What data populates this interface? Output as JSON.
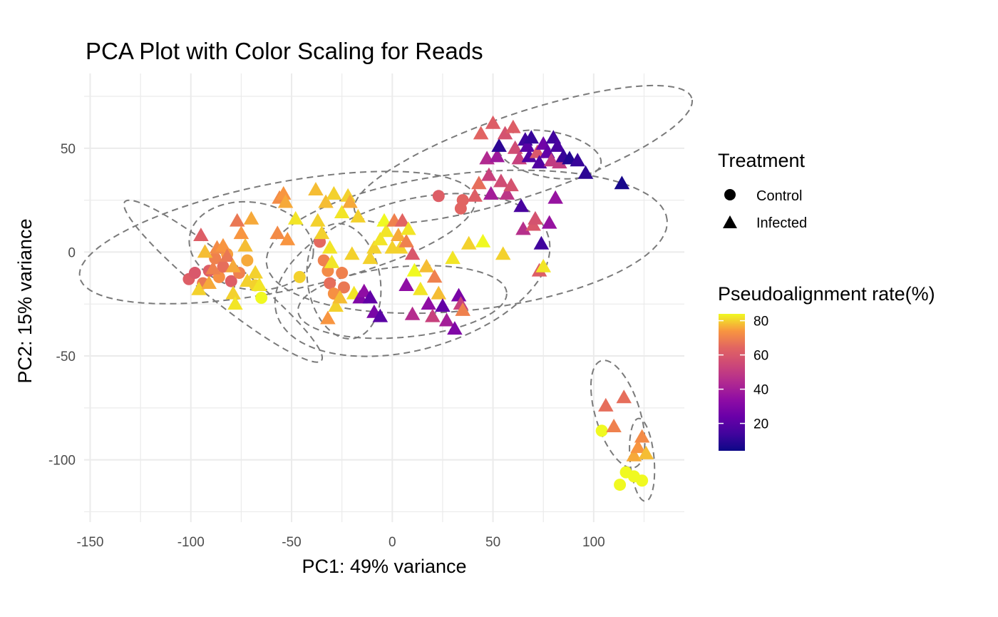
{
  "chart_data": {
    "type": "scatter",
    "title": "PCA Plot with Color Scaling for Reads",
    "xlabel": "PC1: 49% variance",
    "ylabel": "PC2: 15% variance",
    "xlim": [
      -153,
      145
    ],
    "ylim": [
      -130,
      86
    ],
    "x_ticks": [
      -150,
      -100,
      -50,
      0,
      50,
      100
    ],
    "y_ticks": [
      -100,
      -50,
      0,
      50
    ],
    "grid": true,
    "shape_legend": {
      "title": "Treatment",
      "items": [
        {
          "label": "Control",
          "shape": "circle"
        },
        {
          "label": "Infected",
          "shape": "triangle"
        }
      ]
    },
    "color_legend": {
      "title": "Pseudoalignment rate(%)",
      "range": [
        4,
        84
      ],
      "ticks": [
        20,
        40,
        60,
        80
      ],
      "palette": "plasma"
    },
    "points": [
      {
        "x": -101,
        "y": -13,
        "group": "Control",
        "rate": 62
      },
      {
        "x": -98,
        "y": -10,
        "group": "Control",
        "rate": 60
      },
      {
        "x": -94,
        "y": -15,
        "group": "Control",
        "rate": 68
      },
      {
        "x": -91,
        "y": -9,
        "group": "Control",
        "rate": 62
      },
      {
        "x": -88,
        "y": -3,
        "group": "Control",
        "rate": 70
      },
      {
        "x": -86,
        "y": -12,
        "group": "Control",
        "rate": 73
      },
      {
        "x": -84,
        "y": -7,
        "group": "Control",
        "rate": 66
      },
      {
        "x": -82,
        "y": -1,
        "group": "Control",
        "rate": 75
      },
      {
        "x": -80,
        "y": -14,
        "group": "Control",
        "rate": 62
      },
      {
        "x": -76,
        "y": -10,
        "group": "Control",
        "rate": 70
      },
      {
        "x": -72,
        "y": -4,
        "group": "Control",
        "rate": 76
      },
      {
        "x": -68,
        "y": -16,
        "group": "Control",
        "rate": 80
      },
      {
        "x": -65,
        "y": -22,
        "group": "Control",
        "rate": 84
      },
      {
        "x": -46,
        "y": -12,
        "group": "Control",
        "rate": 80
      },
      {
        "x": -36,
        "y": 5,
        "group": "Control",
        "rate": 65
      },
      {
        "x": -34,
        "y": -4,
        "group": "Control",
        "rate": 70
      },
      {
        "x": -32,
        "y": -9,
        "group": "Control",
        "rate": 72
      },
      {
        "x": -31,
        "y": -15,
        "group": "Control",
        "rate": 66
      },
      {
        "x": -29,
        "y": -20,
        "group": "Control",
        "rate": 73
      },
      {
        "x": -25,
        "y": -10,
        "group": "Control",
        "rate": 70
      },
      {
        "x": -24,
        "y": -17,
        "group": "Control",
        "rate": 68
      },
      {
        "x": 23,
        "y": 27,
        "group": "Control",
        "rate": 62
      },
      {
        "x": 35,
        "y": 25,
        "group": "Control",
        "rate": 64
      },
      {
        "x": 34,
        "y": 21,
        "group": "Control",
        "rate": 64
      },
      {
        "x": 104,
        "y": -86,
        "group": "Control",
        "rate": 84
      },
      {
        "x": 116,
        "y": -106,
        "group": "Control",
        "rate": 84
      },
      {
        "x": 113,
        "y": -112,
        "group": "Control",
        "rate": 84
      },
      {
        "x": 124,
        "y": -110,
        "group": "Control",
        "rate": 84
      },
      {
        "x": 120,
        "y": -108,
        "group": "Control",
        "rate": 84
      },
      {
        "x": -95,
        "y": 8,
        "group": "Infected",
        "rate": 62
      },
      {
        "x": -93,
        "y": 0,
        "group": "Infected",
        "rate": 78
      },
      {
        "x": -96,
        "y": -18,
        "group": "Infected",
        "rate": 80
      },
      {
        "x": -91,
        "y": -15,
        "group": "Infected",
        "rate": 76
      },
      {
        "x": -89,
        "y": -8,
        "group": "Infected",
        "rate": 70
      },
      {
        "x": -87,
        "y": 2,
        "group": "Infected",
        "rate": 72
      },
      {
        "x": -84,
        "y": 3,
        "group": "Infected",
        "rate": 74
      },
      {
        "x": -82,
        "y": -2,
        "group": "Infected",
        "rate": 68
      },
      {
        "x": -79,
        "y": -7,
        "group": "Infected",
        "rate": 76
      },
      {
        "x": -77,
        "y": 15,
        "group": "Infected",
        "rate": 68
      },
      {
        "x": -79,
        "y": -20,
        "group": "Infected",
        "rate": 80
      },
      {
        "x": -78,
        "y": -25,
        "group": "Infected",
        "rate": 82
      },
      {
        "x": -75,
        "y": 9,
        "group": "Infected",
        "rate": 74
      },
      {
        "x": -73,
        "y": 3,
        "group": "Infected",
        "rate": 78
      },
      {
        "x": -72,
        "y": -14,
        "group": "Infected",
        "rate": 80
      },
      {
        "x": -70,
        "y": 16,
        "group": "Infected",
        "rate": 76
      },
      {
        "x": -68,
        "y": -10,
        "group": "Infected",
        "rate": 80
      },
      {
        "x": -66,
        "y": -16,
        "group": "Infected",
        "rate": 82
      },
      {
        "x": -56,
        "y": 26,
        "group": "Infected",
        "rate": 72
      },
      {
        "x": -54,
        "y": 28,
        "group": "Infected",
        "rate": 74
      },
      {
        "x": -53,
        "y": 24,
        "group": "Infected",
        "rate": 76
      },
      {
        "x": -57,
        "y": 9,
        "group": "Infected",
        "rate": 72
      },
      {
        "x": -52,
        "y": 6,
        "group": "Infected",
        "rate": 74
      },
      {
        "x": -48,
        "y": 16,
        "group": "Infected",
        "rate": 82
      },
      {
        "x": -38,
        "y": 30,
        "group": "Infected",
        "rate": 78
      },
      {
        "x": -37,
        "y": 15,
        "group": "Infected",
        "rate": 80
      },
      {
        "x": -35,
        "y": 9,
        "group": "Infected",
        "rate": 80
      },
      {
        "x": -33,
        "y": 24,
        "group": "Infected",
        "rate": 78
      },
      {
        "x": -31,
        "y": 2,
        "group": "Infected",
        "rate": 82
      },
      {
        "x": -30,
        "y": -5,
        "group": "Infected",
        "rate": 82
      },
      {
        "x": -29,
        "y": 28,
        "group": "Infected",
        "rate": 80
      },
      {
        "x": -28,
        "y": -26,
        "group": "Infected",
        "rate": 80
      },
      {
        "x": -26,
        "y": -22,
        "group": "Infected",
        "rate": 78
      },
      {
        "x": -25,
        "y": 19,
        "group": "Infected",
        "rate": 82
      },
      {
        "x": -22,
        "y": 27,
        "group": "Infected",
        "rate": 80
      },
      {
        "x": -21,
        "y": 24,
        "group": "Infected",
        "rate": 76
      },
      {
        "x": -20,
        "y": -1,
        "group": "Infected",
        "rate": 80
      },
      {
        "x": -17,
        "y": 17,
        "group": "Infected",
        "rate": 80
      },
      {
        "x": -19,
        "y": -20,
        "group": "Infected",
        "rate": 82
      },
      {
        "x": -32,
        "y": -32,
        "group": "Infected",
        "rate": 74
      },
      {
        "x": -16,
        "y": -22,
        "group": "Infected",
        "rate": 30
      },
      {
        "x": -14,
        "y": -19,
        "group": "Infected",
        "rate": 34
      },
      {
        "x": -11,
        "y": -22,
        "group": "Infected",
        "rate": 22
      },
      {
        "x": -9,
        "y": -29,
        "group": "Infected",
        "rate": 28
      },
      {
        "x": -6,
        "y": -31,
        "group": "Infected",
        "rate": 20
      },
      {
        "x": -11,
        "y": -3,
        "group": "Infected",
        "rate": 80
      },
      {
        "x": -9,
        "y": 2,
        "group": "Infected",
        "rate": 80
      },
      {
        "x": -6,
        "y": 6,
        "group": "Infected",
        "rate": 82
      },
      {
        "x": -4,
        "y": 15,
        "group": "Infected",
        "rate": 84
      },
      {
        "x": -3,
        "y": 10,
        "group": "Infected",
        "rate": 82
      },
      {
        "x": 0,
        "y": 2,
        "group": "Infected",
        "rate": 80
      },
      {
        "x": 1,
        "y": 15,
        "group": "Infected",
        "rate": 70
      },
      {
        "x": 3,
        "y": 8,
        "group": "Infected",
        "rate": 76
      },
      {
        "x": 4,
        "y": 2,
        "group": "Infected",
        "rate": 80
      },
      {
        "x": 5,
        "y": 15,
        "group": "Infected",
        "rate": 64
      },
      {
        "x": 7,
        "y": 5,
        "group": "Infected",
        "rate": 70
      },
      {
        "x": 8,
        "y": 11,
        "group": "Infected",
        "rate": 82
      },
      {
        "x": 10,
        "y": -1,
        "group": "Infected",
        "rate": 60
      },
      {
        "x": 11,
        "y": -9,
        "group": "Infected",
        "rate": 84
      },
      {
        "x": 7,
        "y": -16,
        "group": "Infected",
        "rate": 34
      },
      {
        "x": 10,
        "y": -30,
        "group": "Infected",
        "rate": 45
      },
      {
        "x": 14,
        "y": -18,
        "group": "Infected",
        "rate": 82
      },
      {
        "x": 17,
        "y": -7,
        "group": "Infected",
        "rate": 78
      },
      {
        "x": 18,
        "y": -25,
        "group": "Infected",
        "rate": 34
      },
      {
        "x": 20,
        "y": -31,
        "group": "Infected",
        "rate": 52
      },
      {
        "x": 21,
        "y": -12,
        "group": "Infected",
        "rate": 70
      },
      {
        "x": 23,
        "y": -20,
        "group": "Infected",
        "rate": 78
      },
      {
        "x": 25,
        "y": -26,
        "group": "Infected",
        "rate": 22
      },
      {
        "x": 27,
        "y": -33,
        "group": "Infected",
        "rate": 40
      },
      {
        "x": 30,
        "y": -3,
        "group": "Infected",
        "rate": 82
      },
      {
        "x": 31,
        "y": -37,
        "group": "Infected",
        "rate": 30
      },
      {
        "x": 33,
        "y": -21,
        "group": "Infected",
        "rate": 28
      },
      {
        "x": 34,
        "y": -25,
        "group": "Infected",
        "rate": 52
      },
      {
        "x": 35,
        "y": -28,
        "group": "Infected",
        "rate": 70
      },
      {
        "x": 38,
        "y": 4,
        "group": "Infected",
        "rate": 80
      },
      {
        "x": 41,
        "y": 27,
        "group": "Infected",
        "rate": 62
      },
      {
        "x": 43,
        "y": 33,
        "group": "Infected",
        "rate": 66
      },
      {
        "x": 44,
        "y": 57,
        "group": "Infected",
        "rate": 64
      },
      {
        "x": 45,
        "y": 5,
        "group": "Infected",
        "rate": 84
      },
      {
        "x": 47,
        "y": 45,
        "group": "Infected",
        "rate": 44
      },
      {
        "x": 48,
        "y": 37,
        "group": "Infected",
        "rate": 52
      },
      {
        "x": 49,
        "y": 28,
        "group": "Infected",
        "rate": 40
      },
      {
        "x": 50,
        "y": 62,
        "group": "Infected",
        "rate": 62
      },
      {
        "x": 52,
        "y": 46,
        "group": "Infected",
        "rate": 38
      },
      {
        "x": 53,
        "y": 51,
        "group": "Infected",
        "rate": 10
      },
      {
        "x": 54,
        "y": 34,
        "group": "Infected",
        "rate": 56
      },
      {
        "x": 55,
        "y": -1,
        "group": "Infected",
        "rate": 80
      },
      {
        "x": 56,
        "y": 57,
        "group": "Infected",
        "rate": 58
      },
      {
        "x": 57,
        "y": 28,
        "group": "Infected",
        "rate": 48
      },
      {
        "x": 59,
        "y": 32,
        "group": "Infected",
        "rate": 58
      },
      {
        "x": 60,
        "y": 60,
        "group": "Infected",
        "rate": 62
      },
      {
        "x": 61,
        "y": 50,
        "group": "Infected",
        "rate": 56
      },
      {
        "x": 63,
        "y": 45,
        "group": "Infected",
        "rate": 52
      },
      {
        "x": 64,
        "y": 22,
        "group": "Infected",
        "rate": 16
      },
      {
        "x": 65,
        "y": 11,
        "group": "Infected",
        "rate": 46
      },
      {
        "x": 66,
        "y": 54,
        "group": "Infected",
        "rate": 14
      },
      {
        "x": 67,
        "y": 51,
        "group": "Infected",
        "rate": 20
      },
      {
        "x": 68,
        "y": 46,
        "group": "Infected",
        "rate": 18
      },
      {
        "x": 69,
        "y": 55,
        "group": "Infected",
        "rate": 12
      },
      {
        "x": 70,
        "y": 13,
        "group": "Infected",
        "rate": 60
      },
      {
        "x": 71,
        "y": 16,
        "group": "Infected",
        "rate": 58
      },
      {
        "x": 72,
        "y": 48,
        "group": "Infected",
        "rate": 60
      },
      {
        "x": 73,
        "y": 43,
        "group": "Infected",
        "rate": 18
      },
      {
        "x": 74,
        "y": 4,
        "group": "Infected",
        "rate": 14
      },
      {
        "x": 73,
        "y": -9,
        "group": "Infected",
        "rate": 62
      },
      {
        "x": 75,
        "y": -7,
        "group": "Infected",
        "rate": 82
      },
      {
        "x": 75,
        "y": 52,
        "group": "Infected",
        "rate": 26
      },
      {
        "x": 77,
        "y": 48,
        "group": "Infected",
        "rate": 22
      },
      {
        "x": 78,
        "y": 14,
        "group": "Infected",
        "rate": 36
      },
      {
        "x": 79,
        "y": 44,
        "group": "Infected",
        "rate": 50
      },
      {
        "x": 80,
        "y": 55,
        "group": "Infected",
        "rate": 14
      },
      {
        "x": 81,
        "y": 26,
        "group": "Infected",
        "rate": 36
      },
      {
        "x": 82,
        "y": 51,
        "group": "Infected",
        "rate": 16
      },
      {
        "x": 83,
        "y": 43,
        "group": "Infected",
        "rate": 50
      },
      {
        "x": 85,
        "y": 46,
        "group": "Infected",
        "rate": 12
      },
      {
        "x": 88,
        "y": 45,
        "group": "Infected",
        "rate": 8
      },
      {
        "x": 92,
        "y": 44,
        "group": "Infected",
        "rate": 12
      },
      {
        "x": 96,
        "y": 38,
        "group": "Infected",
        "rate": 10
      },
      {
        "x": 114,
        "y": 33,
        "group": "Infected",
        "rate": 6
      },
      {
        "x": 106,
        "y": -74,
        "group": "Infected",
        "rate": 66
      },
      {
        "x": 110,
        "y": -84,
        "group": "Infected",
        "rate": 70
      },
      {
        "x": 115,
        "y": -70,
        "group": "Infected",
        "rate": 66
      },
      {
        "x": 120,
        "y": -98,
        "group": "Infected",
        "rate": 76
      },
      {
        "x": 122,
        "y": -94,
        "group": "Infected",
        "rate": 74
      },
      {
        "x": 124,
        "y": -89,
        "group": "Infected",
        "rate": 72
      },
      {
        "x": 126,
        "y": -97,
        "group": "Infected",
        "rate": 78
      }
    ],
    "ellipses": [
      {
        "cx": -57,
        "cy": 7,
        "rx": 100,
        "ry": 26,
        "angle": 11
      },
      {
        "cx": -84,
        "cy": -14,
        "rx": 62,
        "ry": 10,
        "angle": -38
      },
      {
        "cx": -70,
        "cy": 3,
        "rx": 31,
        "ry": 21,
        "angle": -8
      },
      {
        "cx": 10,
        "cy": -11,
        "rx": 70,
        "ry": 36,
        "angle": 15
      },
      {
        "cx": -24,
        "cy": -14,
        "rx": 18,
        "ry": 28,
        "angle": 10
      },
      {
        "cx": 37,
        "cy": 5,
        "rx": 100,
        "ry": 33,
        "angle": 6
      },
      {
        "cx": 65,
        "cy": 47,
        "rx": 88,
        "ry": 20,
        "angle": 18
      },
      {
        "cx": 78,
        "cy": 47,
        "rx": 26,
        "ry": 11,
        "angle": -10
      },
      {
        "cx": 5,
        "cy": -24,
        "rx": 52,
        "ry": 17,
        "angle": 5
      },
      {
        "cx": 112,
        "cy": -78,
        "rx": 11,
        "ry": 27,
        "angle": 18
      },
      {
        "cx": 124,
        "cy": -100,
        "rx": 6,
        "ry": 20,
        "angle": 5
      }
    ]
  }
}
